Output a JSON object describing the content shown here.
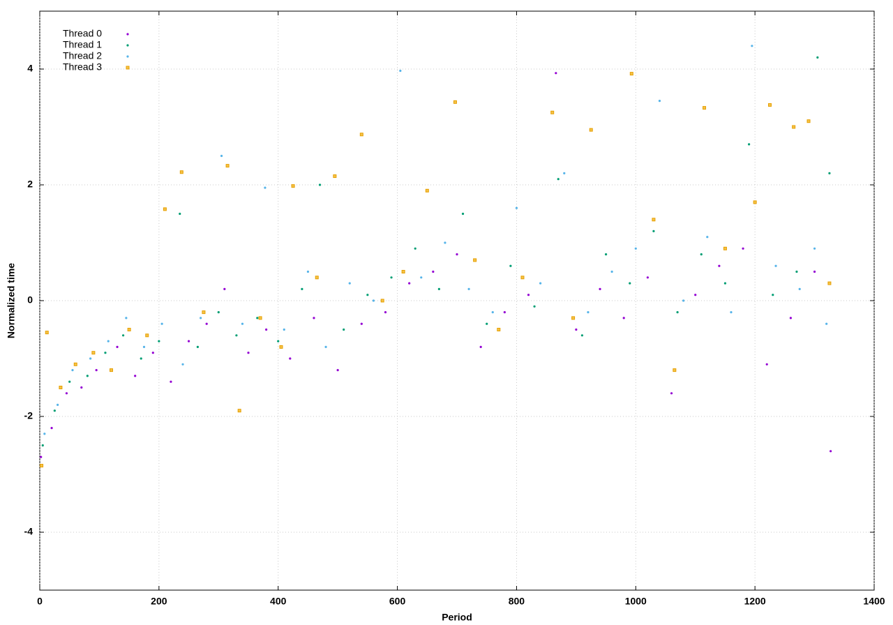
{
  "chart_data": {
    "type": "scatter",
    "xlabel": "Period",
    "ylabel": "Normalized time",
    "xlim": [
      0,
      1400
    ],
    "ylim": [
      -5,
      5
    ],
    "xticks": [
      0,
      200,
      400,
      600,
      800,
      1000,
      1200,
      1400
    ],
    "yticks": [
      -4,
      -2,
      0,
      2,
      4
    ],
    "grid": true,
    "legend": "upper left",
    "series": [
      {
        "name": "Thread 0",
        "color": "#9400d3",
        "x": [
          2,
          20,
          45,
          70,
          95,
          130,
          160,
          190,
          220,
          250,
          280,
          310,
          350,
          380,
          420,
          460,
          500,
          540,
          580,
          620,
          660,
          700,
          740,
          780,
          820,
          866,
          900,
          940,
          980,
          1020,
          1060,
          1100,
          1140,
          1180,
          1220,
          1260,
          1300,
          1327
        ],
        "values": [
          -2.7,
          -2.2,
          -1.6,
          -1.5,
          -1.2,
          -0.8,
          -1.3,
          -0.9,
          -1.4,
          -0.7,
          -0.4,
          0.2,
          -0.9,
          -0.5,
          -1.0,
          -0.3,
          -1.2,
          -0.4,
          -0.2,
          0.3,
          0.5,
          0.8,
          -0.8,
          -0.2,
          0.1,
          3.93,
          -0.5,
          0.2,
          -0.3,
          0.4,
          -1.6,
          0.1,
          0.6,
          0.9,
          -1.1,
          -0.3,
          0.5,
          -2.6
        ]
      },
      {
        "name": "Thread 1",
        "color": "#009e73",
        "x": [
          5,
          25,
          50,
          80,
          110,
          140,
          170,
          200,
          235,
          265,
          300,
          330,
          365,
          400,
          440,
          470,
          510,
          550,
          590,
          630,
          670,
          710,
          750,
          790,
          830,
          870,
          910,
          950,
          990,
          1030,
          1070,
          1110,
          1150,
          1190,
          1230,
          1270,
          1305,
          1325
        ],
        "values": [
          -2.5,
          -1.9,
          -1.4,
          -1.3,
          -0.9,
          -0.6,
          -1.0,
          -0.7,
          1.5,
          -0.8,
          -0.2,
          -0.6,
          -0.3,
          -0.7,
          0.2,
          2.0,
          -0.5,
          0.1,
          0.4,
          0.9,
          0.2,
          1.5,
          -0.4,
          0.6,
          -0.1,
          2.1,
          -0.6,
          0.8,
          0.3,
          1.2,
          -0.2,
          0.8,
          0.3,
          2.7,
          0.1,
          0.5,
          4.2,
          2.2
        ]
      },
      {
        "name": "Thread 2",
        "color": "#56b4e9",
        "x": [
          8,
          30,
          55,
          85,
          115,
          145,
          175,
          205,
          240,
          270,
          305,
          340,
          378,
          410,
          450,
          480,
          520,
          560,
          605,
          640,
          680,
          720,
          760,
          800,
          840,
          880,
          920,
          960,
          1000,
          1040,
          1080,
          1120,
          1160,
          1195,
          1235,
          1275,
          1300,
          1320
        ],
        "values": [
          -2.3,
          -1.8,
          -1.2,
          -1.0,
          -0.7,
          -0.3,
          -0.8,
          -0.4,
          -1.1,
          -0.3,
          2.5,
          -0.4,
          1.95,
          -0.5,
          0.5,
          -0.8,
          0.3,
          0.0,
          3.97,
          0.4,
          1.0,
          0.2,
          -0.2,
          1.6,
          0.3,
          2.2,
          -0.2,
          0.5,
          0.9,
          3.45,
          0.0,
          1.1,
          -0.2,
          4.4,
          0.6,
          0.2,
          0.9,
          -0.4
        ]
      },
      {
        "name": "Thread 3",
        "color": "#e69f00",
        "x": [
          3,
          12,
          35,
          60,
          90,
          120,
          150,
          180,
          210,
          238,
          275,
          315,
          335,
          370,
          405,
          425,
          465,
          495,
          540,
          575,
          610,
          650,
          697,
          730,
          770,
          810,
          860,
          895,
          925,
          993,
          1030,
          1065,
          1115,
          1150,
          1200,
          1225,
          1265,
          1290,
          1325
        ],
        "values": [
          -2.85,
          -0.55,
          -1.5,
          -1.1,
          -0.9,
          -1.2,
          -0.5,
          -0.6,
          1.58,
          2.22,
          -0.2,
          2.33,
          -1.9,
          -0.3,
          -0.8,
          1.98,
          0.4,
          2.15,
          2.87,
          0.0,
          0.5,
          1.9,
          3.43,
          0.7,
          -0.5,
          0.4,
          3.25,
          -0.3,
          2.95,
          3.92,
          1.4,
          -1.2,
          3.33,
          0.9,
          1.7,
          3.38,
          3.0,
          3.1,
          0.3
        ]
      }
    ]
  }
}
